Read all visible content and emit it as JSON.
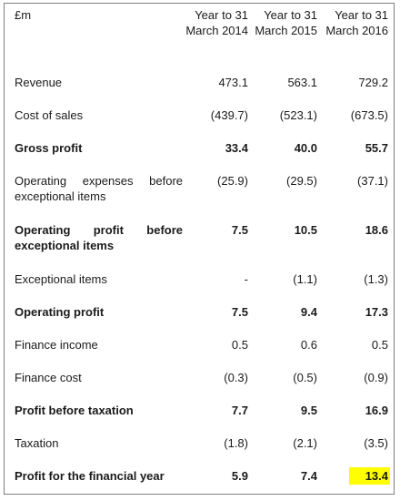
{
  "header": {
    "currency": "£m",
    "columns": [
      "Year to 31 March 2014",
      "Year to 31 March 2015",
      "Year to 31 March 2016"
    ]
  },
  "rows": [
    {
      "label": "Revenue",
      "bold": false,
      "values": [
        "473.1",
        "563.1",
        "729.2"
      ]
    },
    {
      "label": "Cost of sales",
      "bold": false,
      "values": [
        "(439.7)",
        "(523.1)",
        "(673.5)"
      ]
    },
    {
      "label": "Gross profit",
      "bold": true,
      "values": [
        "33.4",
        "40.0",
        "55.7"
      ]
    },
    {
      "label": "Operating expenses before exceptional items",
      "bold": false,
      "values": [
        "(25.9)",
        "(29.5)",
        "(37.1)"
      ]
    },
    {
      "label": "Operating profit before exceptional items",
      "bold": true,
      "values": [
        "7.5",
        "10.5",
        "18.6"
      ]
    },
    {
      "label": "Exceptional items",
      "bold": false,
      "values": [
        "-",
        "(1.1)",
        "(1.3)"
      ]
    },
    {
      "label": "Operating profit",
      "bold": true,
      "values": [
        "7.5",
        "9.4",
        "17.3"
      ]
    },
    {
      "label": "Finance income",
      "bold": false,
      "values": [
        "0.5",
        "0.6",
        "0.5"
      ]
    },
    {
      "label": "Finance cost",
      "bold": false,
      "values": [
        "(0.3)",
        "(0.5)",
        "(0.9)"
      ]
    },
    {
      "label": "Profit before taxation",
      "bold": true,
      "values": [
        "7.7",
        "9.5",
        "16.9"
      ]
    },
    {
      "label": "Taxation",
      "bold": false,
      "values": [
        "(1.8)",
        "(2.1)",
        "(3.5)"
      ]
    },
    {
      "label": "Profit for the financial year",
      "bold": true,
      "values": [
        "5.9",
        "7.4",
        "13.4"
      ]
    }
  ],
  "highlight_color": "#ffff00"
}
